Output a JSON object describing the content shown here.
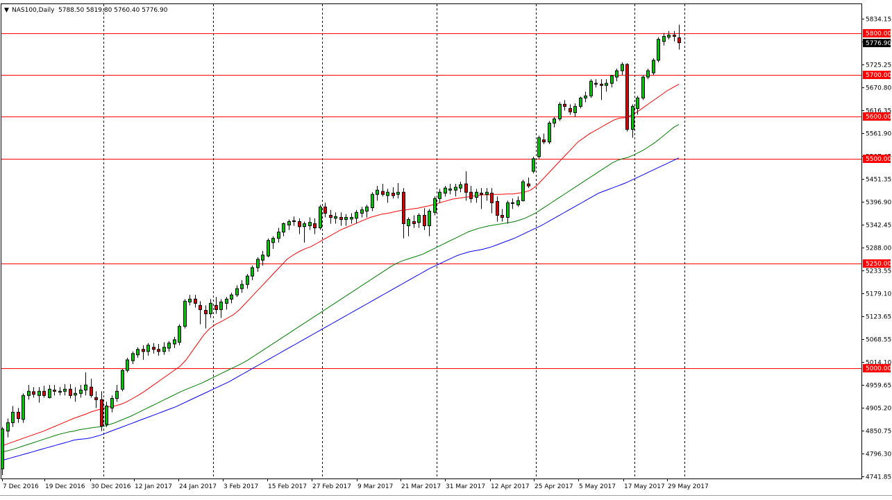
{
  "header": {
    "symbol_timeframe": "NAS100,Daily",
    "ohlc": "5788.50 5819.80 5760.40 5776.90",
    "collapse_glyph": "▼"
  },
  "colors": {
    "background": "#ffffff",
    "frame": "#000000",
    "bull_body": "#00c800",
    "bear_body": "#e00000",
    "wick": "#000000",
    "level_line": "#ff0000",
    "ma_fast": "#ff0000",
    "ma_mid": "#008000",
    "ma_slow": "#0000ff",
    "period_separator": "#000000",
    "level_label_bg": "#ff0000",
    "level_label_text": "#ffffff"
  },
  "chart_data": {
    "type": "candlestick",
    "x_tick_labels": [
      "7 Dec 2016",
      "19 Dec 2016",
      "30 Dec 2016",
      "12 Jan 2017",
      "24 Jan 2017",
      "3 Feb 2017",
      "15 Feb 2017",
      "27 Feb 2017",
      "9 Mar 2017",
      "21 Mar 2017",
      "31 Mar 2017",
      "12 Apr 2017",
      "25 Apr 2017",
      "5 May 2017",
      "17 May 2017",
      "29 May 2017"
    ],
    "y_tick_labels": [
      "5834.15",
      "5779.70",
      "5725.25",
      "5670.80",
      "5616.35",
      "5561.90",
      "5507.45",
      "5451.35",
      "5396.90",
      "5342.45",
      "5288.00",
      "5233.55",
      "5179.10",
      "5123.65",
      "5068.55",
      "5014.10",
      "4959.65",
      "4905.20",
      "4850.75",
      "4796.30",
      "4741.85"
    ],
    "ylim": [
      4741.85,
      5834.15
    ],
    "levels": [
      5800,
      5700,
      5600,
      5500,
      5250,
      5000
    ],
    "level_labels": [
      "5800.00",
      "5700.00",
      "5600.00",
      "5500.00",
      "5250.00",
      "5000.00"
    ],
    "current_price_label": "5776.90",
    "period_separators_after_index": [
      19,
      40,
      61,
      83,
      102,
      121
    ],
    "ma_fast": [
      4815,
      4820,
      4825,
      4830,
      4835,
      4840,
      4845,
      4850,
      4856,
      4862,
      4868,
      4874,
      4880,
      4885,
      4890,
      4896,
      4900,
      4904,
      4908,
      4910,
      4914,
      4920,
      4928,
      4936,
      4945,
      4955,
      4965,
      4975,
      4985,
      4995,
      5005,
      5020,
      5040,
      5060,
      5080,
      5095,
      5105,
      5112,
      5120,
      5128,
      5140,
      5155,
      5170,
      5185,
      5200,
      5215,
      5230,
      5245,
      5260,
      5270,
      5278,
      5285,
      5290,
      5298,
      5306,
      5314,
      5322,
      5330,
      5336,
      5342,
      5348,
      5354,
      5360,
      5364,
      5368,
      5370,
      5373,
      5376,
      5378,
      5380,
      5382,
      5385,
      5388,
      5392,
      5396,
      5400,
      5404,
      5406,
      5408,
      5410,
      5412,
      5414,
      5414,
      5415,
      5415,
      5416,
      5416,
      5418,
      5420,
      5425,
      5435,
      5450,
      5465,
      5480,
      5495,
      5510,
      5525,
      5540,
      5550,
      5560,
      5568,
      5576,
      5584,
      5592,
      5597,
      5598,
      5604,
      5612,
      5622,
      5632,
      5642,
      5652,
      5662,
      5670,
      5678
    ],
    "ma_mid": [
      4800,
      4803,
      4806,
      4810,
      4814,
      4818,
      4822,
      4826,
      4830,
      4834,
      4838,
      4842,
      4845,
      4848,
      4850,
      4853,
      4855,
      4857,
      4859,
      4860,
      4862,
      4866,
      4870,
      4875,
      4880,
      4885,
      4891,
      4897,
      4903,
      4909,
      4915,
      4921,
      4927,
      4933,
      4939,
      4945,
      4950,
      4955,
      4960,
      4965,
      4971,
      4977,
      4983,
      4989,
      4995,
      5001,
      5007,
      5013,
      5020,
      5028,
      5036,
      5044,
      5052,
      5060,
      5068,
      5076,
      5084,
      5092,
      5100,
      5108,
      5116,
      5124,
      5132,
      5140,
      5148,
      5156,
      5164,
      5172,
      5180,
      5188,
      5196,
      5204,
      5212,
      5220,
      5228,
      5236,
      5244,
      5251,
      5256,
      5260,
      5264,
      5268,
      5272,
      5278,
      5284,
      5290,
      5296,
      5302,
      5308,
      5314,
      5320,
      5326,
      5330,
      5334,
      5337,
      5340,
      5342,
      5344,
      5346,
      5348,
      5350,
      5354,
      5358,
      5364,
      5370,
      5378,
      5386,
      5394,
      5402,
      5410,
      5418,
      5426,
      5434,
      5442,
      5450,
      5458,
      5466,
      5474,
      5482,
      5490,
      5496,
      5500,
      5503,
      5508,
      5514,
      5520,
      5528,
      5536,
      5545,
      5555,
      5565,
      5575,
      5582
    ],
    "ma_slow": [
      4780,
      4783,
      4786,
      4789,
      4792,
      4795,
      4798,
      4801,
      4804,
      4807,
      4810,
      4813,
      4816,
      4819,
      4822,
      4825,
      4828,
      4830,
      4831,
      4832,
      4834,
      4837,
      4840,
      4844,
      4848,
      4852,
      4856,
      4860,
      4864,
      4868,
      4872,
      4876,
      4880,
      4884,
      4888,
      4892,
      4896,
      4900,
      4904,
      4908,
      4913,
      4918,
      4923,
      4928,
      4933,
      4938,
      4943,
      4948,
      4953,
      4958,
      4963,
      4968,
      4974,
      4980,
      4986,
      4992,
      4998,
      5004,
      5010,
      5016,
      5022,
      5028,
      5034,
      5040,
      5046,
      5052,
      5058,
      5064,
      5070,
      5076,
      5082,
      5088,
      5094,
      5100,
      5106,
      5112,
      5118,
      5124,
      5130,
      5136,
      5142,
      5148,
      5154,
      5160,
      5166,
      5172,
      5178,
      5184,
      5190,
      5196,
      5202,
      5208,
      5214,
      5220,
      5226,
      5232,
      5238,
      5243,
      5248,
      5253,
      5258,
      5263,
      5268,
      5272,
      5275,
      5278,
      5280,
      5282,
      5284,
      5287,
      5290,
      5294,
      5298,
      5302,
      5306,
      5310,
      5315,
      5320,
      5325,
      5330,
      5335,
      5340,
      5346,
      5352,
      5358,
      5364,
      5370,
      5376,
      5382,
      5388,
      5394,
      5400,
      5406,
      5412,
      5418,
      5422,
      5426,
      5430,
      5434,
      5438,
      5442,
      5447,
      5452,
      5457,
      5462,
      5467,
      5472,
      5477,
      5482,
      5487,
      5492,
      5497,
      5502
    ],
    "candles": [
      {
        "o": 4760,
        "h": 4860,
        "l": 4745,
        "c": 4855
      },
      {
        "o": 4850,
        "h": 4880,
        "l": 4835,
        "c": 4870
      },
      {
        "o": 4870,
        "h": 4910,
        "l": 4860,
        "c": 4895
      },
      {
        "o": 4895,
        "h": 4905,
        "l": 4870,
        "c": 4880
      },
      {
        "o": 4878,
        "h": 4940,
        "l": 4870,
        "c": 4935
      },
      {
        "o": 4935,
        "h": 4960,
        "l": 4925,
        "c": 4945
      },
      {
        "o": 4944,
        "h": 4955,
        "l": 4930,
        "c": 4938
      },
      {
        "o": 4935,
        "h": 4955,
        "l": 4918,
        "c": 4945
      },
      {
        "o": 4945,
        "h": 4958,
        "l": 4930,
        "c": 4935
      },
      {
        "o": 4930,
        "h": 4960,
        "l": 4928,
        "c": 4950
      },
      {
        "o": 4948,
        "h": 4960,
        "l": 4935,
        "c": 4945
      },
      {
        "o": 4943,
        "h": 4955,
        "l": 4935,
        "c": 4945
      },
      {
        "o": 4945,
        "h": 4962,
        "l": 4935,
        "c": 4950
      },
      {
        "o": 4950,
        "h": 4962,
        "l": 4928,
        "c": 4935
      },
      {
        "o": 4936,
        "h": 4955,
        "l": 4920,
        "c": 4940
      },
      {
        "o": 4940,
        "h": 4960,
        "l": 4930,
        "c": 4948
      },
      {
        "o": 4948,
        "h": 4990,
        "l": 4935,
        "c": 4960
      },
      {
        "o": 4955,
        "h": 4975,
        "l": 4930,
        "c": 4935
      },
      {
        "o": 4930,
        "h": 4945,
        "l": 4905,
        "c": 4925
      },
      {
        "o": 4925,
        "h": 4945,
        "l": 4850,
        "c": 4862
      },
      {
        "o": 4866,
        "h": 4920,
        "l": 4860,
        "c": 4910
      },
      {
        "o": 4905,
        "h": 4935,
        "l": 4895,
        "c": 4928
      },
      {
        "o": 4928,
        "h": 4960,
        "l": 4920,
        "c": 4945
      },
      {
        "o": 4950,
        "h": 4998,
        "l": 4945,
        "c": 4995
      },
      {
        "o": 4995,
        "h": 5025,
        "l": 4990,
        "c": 5020
      },
      {
        "o": 5018,
        "h": 5040,
        "l": 5010,
        "c": 5035
      },
      {
        "o": 5032,
        "h": 5050,
        "l": 5025,
        "c": 5045
      },
      {
        "o": 5045,
        "h": 5055,
        "l": 5020,
        "c": 5040
      },
      {
        "o": 5040,
        "h": 5060,
        "l": 5030,
        "c": 5055
      },
      {
        "o": 5050,
        "h": 5060,
        "l": 5035,
        "c": 5045
      },
      {
        "o": 5045,
        "h": 5058,
        "l": 5030,
        "c": 5040
      },
      {
        "o": 5040,
        "h": 5062,
        "l": 5032,
        "c": 5050
      },
      {
        "o": 5048,
        "h": 5065,
        "l": 5040,
        "c": 5060
      },
      {
        "o": 5058,
        "h": 5075,
        "l": 5048,
        "c": 5068
      },
      {
        "o": 5062,
        "h": 5105,
        "l": 5055,
        "c": 5100
      },
      {
        "o": 5100,
        "h": 5165,
        "l": 5095,
        "c": 5160
      },
      {
        "o": 5158,
        "h": 5175,
        "l": 5150,
        "c": 5165
      },
      {
        "o": 5165,
        "h": 5175,
        "l": 5145,
        "c": 5155
      },
      {
        "o": 5150,
        "h": 5160,
        "l": 5105,
        "c": 5140
      },
      {
        "o": 5138,
        "h": 5150,
        "l": 5095,
        "c": 5130
      },
      {
        "o": 5130,
        "h": 5165,
        "l": 5120,
        "c": 5155
      },
      {
        "o": 5150,
        "h": 5170,
        "l": 5130,
        "c": 5140
      },
      {
        "o": 5140,
        "h": 5165,
        "l": 5120,
        "c": 5158
      },
      {
        "o": 5155,
        "h": 5170,
        "l": 5140,
        "c": 5165
      },
      {
        "o": 5165,
        "h": 5180,
        "l": 5155,
        "c": 5175
      },
      {
        "o": 5175,
        "h": 5198,
        "l": 5170,
        "c": 5190
      },
      {
        "o": 5190,
        "h": 5210,
        "l": 5180,
        "c": 5200
      },
      {
        "o": 5200,
        "h": 5225,
        "l": 5190,
        "c": 5220
      },
      {
        "o": 5220,
        "h": 5245,
        "l": 5210,
        "c": 5240
      },
      {
        "o": 5240,
        "h": 5265,
        "l": 5230,
        "c": 5260
      },
      {
        "o": 5258,
        "h": 5280,
        "l": 5245,
        "c": 5270
      },
      {
        "o": 5268,
        "h": 5310,
        "l": 5265,
        "c": 5305
      },
      {
        "o": 5300,
        "h": 5315,
        "l": 5285,
        "c": 5310
      },
      {
        "o": 5310,
        "h": 5335,
        "l": 5300,
        "c": 5325
      },
      {
        "o": 5325,
        "h": 5348,
        "l": 5315,
        "c": 5345
      },
      {
        "o": 5342,
        "h": 5355,
        "l": 5330,
        "c": 5350
      },
      {
        "o": 5350,
        "h": 5362,
        "l": 5340,
        "c": 5352
      },
      {
        "o": 5350,
        "h": 5358,
        "l": 5320,
        "c": 5338
      },
      {
        "o": 5338,
        "h": 5350,
        "l": 5300,
        "c": 5345
      },
      {
        "o": 5340,
        "h": 5360,
        "l": 5330,
        "c": 5348
      },
      {
        "o": 5345,
        "h": 5358,
        "l": 5320,
        "c": 5335
      },
      {
        "o": 5335,
        "h": 5390,
        "l": 5330,
        "c": 5385
      },
      {
        "o": 5385,
        "h": 5395,
        "l": 5360,
        "c": 5370
      },
      {
        "o": 5365,
        "h": 5378,
        "l": 5345,
        "c": 5360
      },
      {
        "o": 5358,
        "h": 5372,
        "l": 5345,
        "c": 5362
      },
      {
        "o": 5360,
        "h": 5372,
        "l": 5340,
        "c": 5355
      },
      {
        "o": 5355,
        "h": 5368,
        "l": 5340,
        "c": 5360
      },
      {
        "o": 5356,
        "h": 5370,
        "l": 5345,
        "c": 5360
      },
      {
        "o": 5358,
        "h": 5378,
        "l": 5345,
        "c": 5372
      },
      {
        "o": 5370,
        "h": 5385,
        "l": 5360,
        "c": 5378
      },
      {
        "o": 5375,
        "h": 5390,
        "l": 5360,
        "c": 5385
      },
      {
        "o": 5383,
        "h": 5420,
        "l": 5375,
        "c": 5415
      },
      {
        "o": 5415,
        "h": 5435,
        "l": 5400,
        "c": 5425
      },
      {
        "o": 5422,
        "h": 5440,
        "l": 5410,
        "c": 5415
      },
      {
        "o": 5412,
        "h": 5428,
        "l": 5395,
        "c": 5420
      },
      {
        "o": 5418,
        "h": 5432,
        "l": 5405,
        "c": 5412
      },
      {
        "o": 5415,
        "h": 5442,
        "l": 5405,
        "c": 5420
      },
      {
        "o": 5420,
        "h": 5430,
        "l": 5310,
        "c": 5345
      },
      {
        "o": 5340,
        "h": 5360,
        "l": 5315,
        "c": 5355
      },
      {
        "o": 5350,
        "h": 5365,
        "l": 5335,
        "c": 5345
      },
      {
        "o": 5348,
        "h": 5370,
        "l": 5335,
        "c": 5365
      },
      {
        "o": 5365,
        "h": 5382,
        "l": 5330,
        "c": 5340
      },
      {
        "o": 5340,
        "h": 5380,
        "l": 5315,
        "c": 5375
      },
      {
        "o": 5372,
        "h": 5410,
        "l": 5365,
        "c": 5405
      },
      {
        "o": 5405,
        "h": 5428,
        "l": 5395,
        "c": 5420
      },
      {
        "o": 5418,
        "h": 5435,
        "l": 5410,
        "c": 5430
      },
      {
        "o": 5425,
        "h": 5440,
        "l": 5415,
        "c": 5428
      },
      {
        "o": 5425,
        "h": 5440,
        "l": 5410,
        "c": 5432
      },
      {
        "o": 5430,
        "h": 5445,
        "l": 5420,
        "c": 5438
      },
      {
        "o": 5440,
        "h": 5470,
        "l": 5400,
        "c": 5420
      },
      {
        "o": 5420,
        "h": 5435,
        "l": 5395,
        "c": 5405
      },
      {
        "o": 5408,
        "h": 5428,
        "l": 5395,
        "c": 5420
      },
      {
        "o": 5418,
        "h": 5430,
        "l": 5380,
        "c": 5415
      },
      {
        "o": 5415,
        "h": 5430,
        "l": 5400,
        "c": 5420
      },
      {
        "o": 5418,
        "h": 5430,
        "l": 5370,
        "c": 5395
      },
      {
        "o": 5398,
        "h": 5410,
        "l": 5350,
        "c": 5365
      },
      {
        "o": 5365,
        "h": 5380,
        "l": 5350,
        "c": 5360
      },
      {
        "o": 5360,
        "h": 5400,
        "l": 5345,
        "c": 5395
      },
      {
        "o": 5395,
        "h": 5405,
        "l": 5380,
        "c": 5395
      },
      {
        "o": 5390,
        "h": 5410,
        "l": 5385,
        "c": 5400
      },
      {
        "o": 5400,
        "h": 5450,
        "l": 5398,
        "c": 5445
      },
      {
        "o": 5440,
        "h": 5455,
        "l": 5430,
        "c": 5435
      },
      {
        "o": 5470,
        "h": 5505,
        "l": 5465,
        "c": 5500
      },
      {
        "o": 5505,
        "h": 5555,
        "l": 5500,
        "c": 5550
      },
      {
        "o": 5545,
        "h": 5560,
        "l": 5535,
        "c": 5540
      },
      {
        "o": 5540,
        "h": 5590,
        "l": 5535,
        "c": 5585
      },
      {
        "o": 5585,
        "h": 5600,
        "l": 5575,
        "c": 5595
      },
      {
        "o": 5595,
        "h": 5635,
        "l": 5590,
        "c": 5630
      },
      {
        "o": 5630,
        "h": 5640,
        "l": 5615,
        "c": 5625
      },
      {
        "o": 5620,
        "h": 5630,
        "l": 5605,
        "c": 5612
      },
      {
        "o": 5610,
        "h": 5632,
        "l": 5600,
        "c": 5625
      },
      {
        "o": 5625,
        "h": 5648,
        "l": 5620,
        "c": 5645
      },
      {
        "o": 5645,
        "h": 5660,
        "l": 5635,
        "c": 5650
      },
      {
        "o": 5650,
        "h": 5690,
        "l": 5645,
        "c": 5685
      },
      {
        "o": 5680,
        "h": 5690,
        "l": 5670,
        "c": 5678
      },
      {
        "o": 5678,
        "h": 5690,
        "l": 5640,
        "c": 5675
      },
      {
        "o": 5675,
        "h": 5690,
        "l": 5660,
        "c": 5680
      },
      {
        "o": 5680,
        "h": 5700,
        "l": 5670,
        "c": 5698
      },
      {
        "o": 5695,
        "h": 5715,
        "l": 5685,
        "c": 5710
      },
      {
        "o": 5710,
        "h": 5730,
        "l": 5700,
        "c": 5725
      },
      {
        "o": 5725,
        "h": 5728,
        "l": 5565,
        "c": 5570
      },
      {
        "o": 5570,
        "h": 5630,
        "l": 5550,
        "c": 5625
      },
      {
        "o": 5620,
        "h": 5650,
        "l": 5605,
        "c": 5645
      },
      {
        "o": 5645,
        "h": 5700,
        "l": 5640,
        "c": 5695
      },
      {
        "o": 5695,
        "h": 5715,
        "l": 5690,
        "c": 5710
      },
      {
        "o": 5705,
        "h": 5740,
        "l": 5700,
        "c": 5735
      },
      {
        "o": 5735,
        "h": 5790,
        "l": 5730,
        "c": 5785
      },
      {
        "o": 5780,
        "h": 5800,
        "l": 5770,
        "c": 5792
      },
      {
        "o": 5790,
        "h": 5805,
        "l": 5785,
        "c": 5795
      },
      {
        "o": 5795,
        "h": 5805,
        "l": 5780,
        "c": 5792
      },
      {
        "o": 5788.5,
        "h": 5819.8,
        "l": 5760.4,
        "c": 5776.9
      }
    ]
  }
}
